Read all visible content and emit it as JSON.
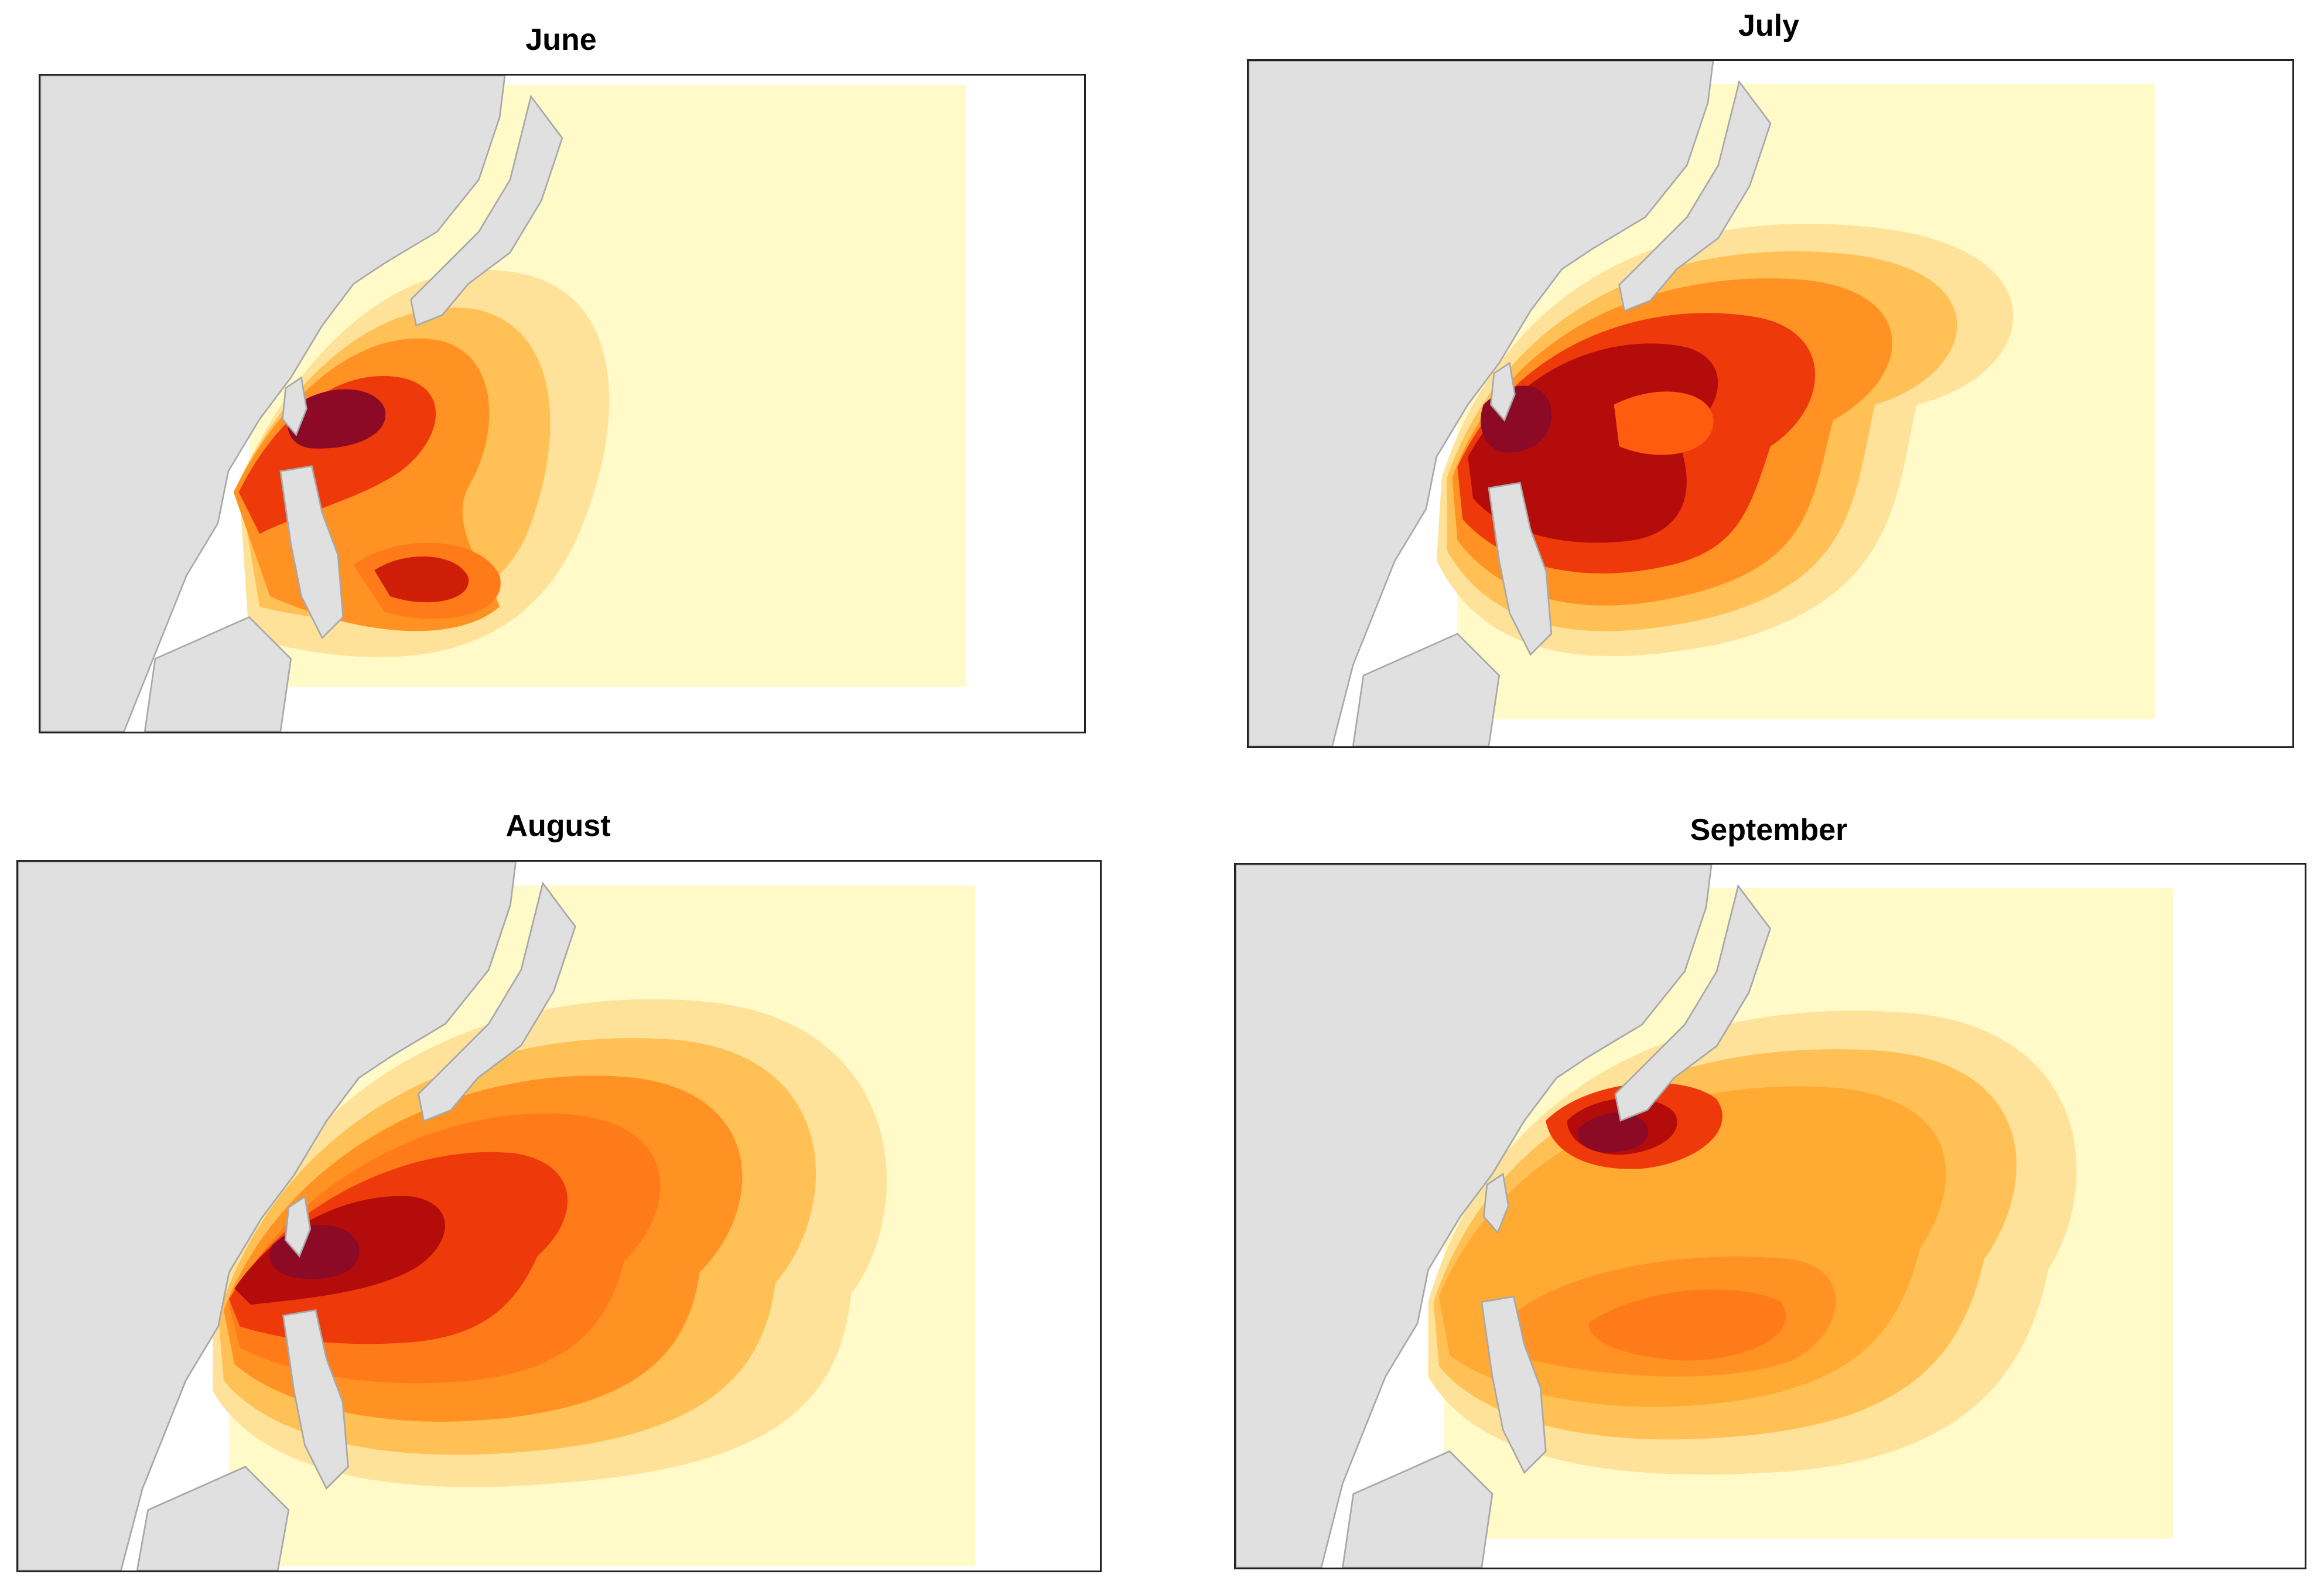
{
  "figure": {
    "panels": [
      {
        "id": "june",
        "title": "June"
      },
      {
        "id": "july",
        "title": "July"
      },
      {
        "id": "august",
        "title": "August"
      },
      {
        "id": "september",
        "title": "September"
      }
    ]
  },
  "colors": {
    "land": "#e0e0e0",
    "coast": "#a8a8a8",
    "ocean": "#ffffff",
    "density_scale": [
      "#fffac8",
      "#fff1b8",
      "#ffe29a",
      "#ffd27a",
      "#ffc055",
      "#ffaa33",
      "#ff9222",
      "#ff7a18",
      "#ff5c10",
      "#ee3a0a",
      "#cf1e08",
      "#b40c0a",
      "#8c0a26"
    ]
  }
}
